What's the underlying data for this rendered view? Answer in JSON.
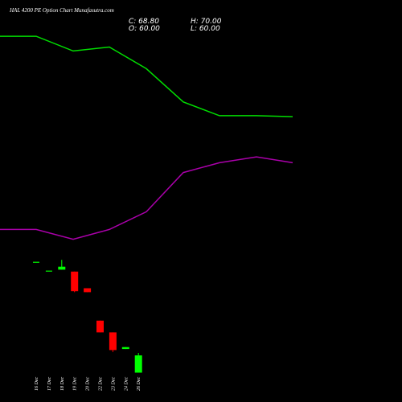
{
  "title": "HAL 4200 PE Option Chart Munafasutra.com",
  "ohlc": {
    "close": "C: 68.80",
    "high": "H: 70.00",
    "open": "O: 60.00",
    "low": "L: 60.00"
  },
  "colors": {
    "background": "#000000",
    "up": "#00ff00",
    "down": "#ff0000",
    "ma_fast": "#00dd00",
    "ma_slow": "#aa00aa",
    "text": "#ffffff"
  },
  "chart_data": {
    "type": "candlestick",
    "title": "HAL 4200 PE Option Chart Munafasutra.com",
    "x": [
      "16 Dec",
      "17 Dec",
      "18 Dec",
      "19 Dec",
      "20 Dec",
      "22 Dec",
      "23 Dec",
      "24 Dec",
      "26 Dec"
    ],
    "candles": [
      {
        "date": "16 Dec",
        "open": 116.5,
        "high": 116.5,
        "low": 116.5,
        "close": 116.5
      },
      {
        "date": "17 Dec",
        "open": 112.0,
        "high": 112.0,
        "low": 112.0,
        "close": 112.0
      },
      {
        "date": "18 Dec",
        "open": 112.5,
        "high": 117.5,
        "low": 112.5,
        "close": 114.0
      },
      {
        "date": "19 Dec",
        "open": 111.5,
        "high": 111.5,
        "low": 101.0,
        "close": 101.5
      },
      {
        "date": "20 Dec",
        "open": 103.0,
        "high": 103.0,
        "low": 101.0,
        "close": 101.0
      },
      {
        "date": "22 Dec",
        "open": 86.5,
        "high": 86.5,
        "low": 80.5,
        "close": 80.5
      },
      {
        "date": "23 Dec",
        "open": 80.5,
        "high": 80.5,
        "low": 70.5,
        "close": 71.5
      },
      {
        "date": "24 Dec",
        "open": 72.0,
        "high": 73.0,
        "low": 72.0,
        "close": 73.0
      },
      {
        "date": "26 Dec",
        "open": 60.0,
        "high": 70.0,
        "low": 60.0,
        "close": 68.8
      }
    ],
    "series": [
      {
        "values": [
          231.5,
          231.5,
          224.0,
          226.0,
          215.0,
          198.0,
          191.0,
          191.0,
          190.5
        ]
      },
      {
        "values": [
          133.0,
          133.0,
          128.0,
          133.0,
          142.0,
          162.0,
          167.0,
          170.0,
          167.0
        ]
      }
    ],
    "ylim": [
      45,
      250
    ]
  }
}
